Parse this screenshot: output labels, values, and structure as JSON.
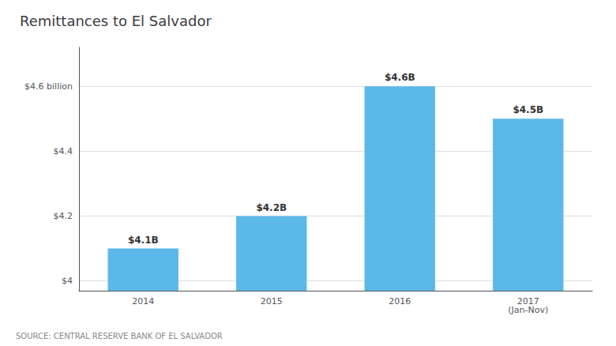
{
  "chart_data": {
    "type": "bar",
    "title": "Remittances to El Salvador",
    "categories": [
      "2014",
      "2015",
      "2016",
      "2017\n(Jan-Nov)"
    ],
    "values": [
      4.1,
      4.2,
      4.6,
      4.5
    ],
    "value_labels": [
      "$4.1B",
      "$4.2B",
      "$4.6B",
      "$4.5B"
    ],
    "data_labels": true,
    "color": "#5bb8e8",
    "ylim": [
      3.97,
      4.72
    ],
    "yticks": [
      {
        "value": 4.0,
        "label": "$4"
      },
      {
        "value": 4.2,
        "label": "$4.2"
      },
      {
        "value": 4.4,
        "label": "$4.4"
      },
      {
        "value": 4.6,
        "label": "$4.6 billion"
      }
    ],
    "grid": true,
    "annotation": "SOURCE: CENTRAL RESERVE BANK OF EL SALVADOR"
  }
}
